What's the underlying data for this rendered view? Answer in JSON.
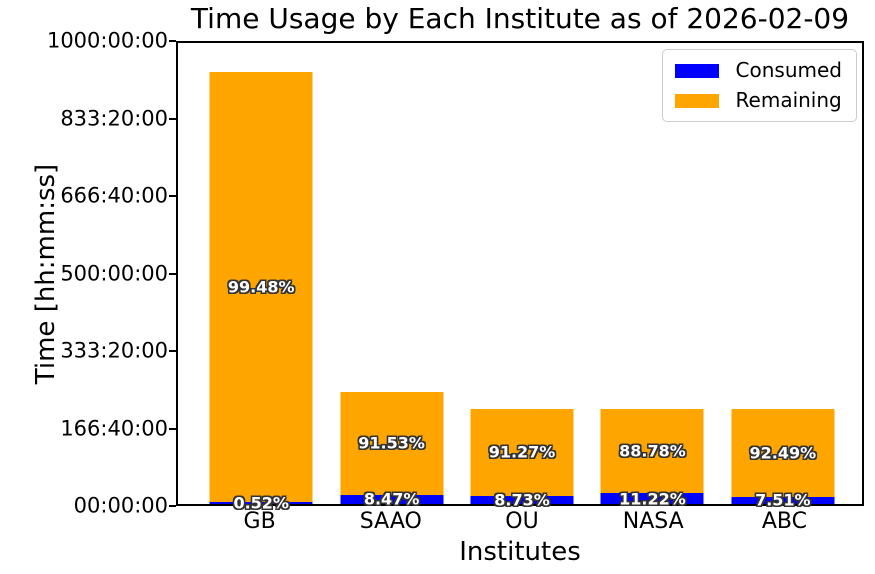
{
  "title": "Time Usage by Each Institute as of 2026-02-09",
  "colors": {
    "consumed": "#0000ff",
    "remaining": "#ffa500",
    "axis": "#000000",
    "background": "#ffffff",
    "legend_border": "#cccccc",
    "bar_label_fill": "#ffffff",
    "bar_label_outline": "#333333"
  },
  "legend": {
    "position": "upper right",
    "items": [
      {
        "label": "Consumed",
        "color": "#0000ff"
      },
      {
        "label": "Remaining",
        "color": "#ffa500"
      }
    ]
  },
  "chart_data": {
    "type": "bar",
    "stacked": true,
    "title": "Time Usage by Each Institute as of 2026-02-09",
    "xlabel": "Institutes",
    "ylabel": "Time [hh:mm:ss]",
    "grid": false,
    "legend_position": "upper right",
    "ylim_hours": [
      0,
      1000
    ],
    "yticks": [
      "00:00:00",
      "166:40:00",
      "333:20:00",
      "500:00:00",
      "666:40:00",
      "833:20:00",
      "1000:00:00"
    ],
    "categories": [
      "GB",
      "SAAO",
      "OU",
      "NASA",
      "ABC"
    ],
    "totals_hours_est": [
      937,
      243,
      207,
      207,
      207
    ],
    "series": [
      {
        "name": "Consumed",
        "pct": [
          0.52,
          8.47,
          8.73,
          11.22,
          7.51
        ],
        "hours_est": [
          4.9,
          20.6,
          18.1,
          23.2,
          15.5
        ]
      },
      {
        "name": "Remaining",
        "pct": [
          99.48,
          91.53,
          91.27,
          88.78,
          92.49
        ],
        "hours_est": [
          932.1,
          222.4,
          188.9,
          183.8,
          191.5
        ]
      }
    ],
    "bar_labels": {
      "consumed": [
        "0.52%",
        "8.47%",
        "8.73%",
        "11.22%",
        "7.51%"
      ],
      "remaining": [
        "99.48%",
        "91.53%",
        "91.27%",
        "88.78%",
        "92.49%"
      ]
    }
  }
}
